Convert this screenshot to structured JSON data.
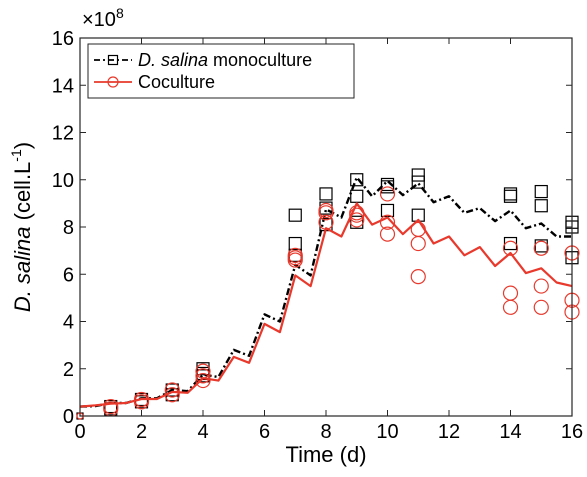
{
  "chart_data": {
    "type": "line",
    "title": "",
    "xlabel": "Time (d)",
    "ylabel_italic": "D. salina",
    "ylabel_rest": " (cell.L",
    "ylabel_exp": "-1",
    "ylabel_close": ")",
    "y_multiplier_base": "×10",
    "y_multiplier_exp": "8",
    "xlim": [
      0,
      16
    ],
    "ylim": [
      0,
      16
    ],
    "xticks": [
      "0",
      "2",
      "4",
      "6",
      "8",
      "10",
      "12",
      "14",
      "16"
    ],
    "yticks": [
      "0",
      "2",
      "4",
      "6",
      "8",
      "10",
      "12",
      "14",
      "16"
    ],
    "grid": false,
    "legend_position": "top-left",
    "series": [
      {
        "name_italic": "D. salina",
        "name_rest": " monoculture",
        "color": "#000000",
        "line_style": "dash-dot",
        "marker": "square",
        "model_x": [
          0,
          0.5,
          1,
          1.5,
          2,
          2.5,
          3,
          3.5,
          4,
          4.5,
          5,
          5.5,
          6,
          6.5,
          7,
          7.5,
          8,
          8.5,
          9,
          9.5,
          10,
          10.5,
          11,
          11.5,
          12,
          12.5,
          13,
          13.5,
          14,
          14.5,
          15,
          15.5,
          16
        ],
        "model_y": [
          0.4,
          0.42,
          0.55,
          0.55,
          0.75,
          0.75,
          1.1,
          1.05,
          1.75,
          1.65,
          2.8,
          2.55,
          4.3,
          4.0,
          6.4,
          5.95,
          8.75,
          8.4,
          10.1,
          9.3,
          9.95,
          9.35,
          9.85,
          9.05,
          9.3,
          8.6,
          8.8,
          8.25,
          8.7,
          7.95,
          8.15,
          7.6,
          7.6
        ],
        "obs_x": [
          1,
          1,
          2,
          2,
          3,
          3,
          4,
          4,
          4,
          7,
          7,
          7,
          8,
          8,
          8,
          9,
          9,
          9,
          10,
          10,
          10,
          11,
          11,
          11,
          14,
          14,
          14,
          15,
          15,
          15,
          16,
          16,
          16
        ],
        "obs_y": [
          0.4,
          0.3,
          0.7,
          0.6,
          1.1,
          0.9,
          2.0,
          1.8,
          1.7,
          8.5,
          7.3,
          6.8,
          9.4,
          8.1,
          8.8,
          10.0,
          9.3,
          8.2,
          9.8,
          9.7,
          8.7,
          10.2,
          9.9,
          8.5,
          9.4,
          9.3,
          7.3,
          9.5,
          8.9,
          7.2,
          8.2,
          8.0,
          6.7
        ],
        "obs_x0": [
          0
        ],
        "obs_y0": [
          0
        ]
      },
      {
        "name": "Coculture",
        "color": "#e8392c",
        "line_style": "solid",
        "marker": "circle",
        "model_x": [
          0,
          0.5,
          1,
          1.5,
          2,
          2.5,
          3,
          3.5,
          4,
          4.5,
          5,
          5.5,
          6,
          6.5,
          7,
          7.5,
          8,
          8.5,
          9,
          9.5,
          10,
          10.5,
          11,
          11.5,
          12,
          12.5,
          13,
          13.5,
          14,
          14.5,
          15,
          15.5,
          16
        ],
        "model_y": [
          0.4,
          0.45,
          0.52,
          0.55,
          0.72,
          0.72,
          1.02,
          0.98,
          1.6,
          1.5,
          2.5,
          2.25,
          3.9,
          3.55,
          5.95,
          5.5,
          7.95,
          7.6,
          9.0,
          8.1,
          8.4,
          7.7,
          8.3,
          7.3,
          7.6,
          6.8,
          7.15,
          6.35,
          6.9,
          6.05,
          6.25,
          5.65,
          5.5
        ],
        "obs_x": [
          1,
          1,
          2,
          2,
          3,
          3,
          4,
          4,
          4,
          7,
          7,
          7,
          8,
          8,
          8,
          9,
          9,
          9,
          10,
          10,
          10,
          11,
          11,
          11,
          14,
          14,
          14,
          15,
          15,
          15,
          16,
          16,
          16
        ],
        "obs_y": [
          0.4,
          0.3,
          0.6,
          0.7,
          1.1,
          0.9,
          1.9,
          1.7,
          1.5,
          6.8,
          6.7,
          6.6,
          8.7,
          8.6,
          8.2,
          8.6,
          8.5,
          8.3,
          9.4,
          8.2,
          7.7,
          7.9,
          7.3,
          5.9,
          7.1,
          5.2,
          4.6,
          7.1,
          5.5,
          4.6,
          6.9,
          4.9,
          4.4
        ],
        "obs_x0": [
          0
        ],
        "obs_y0": [
          0
        ]
      }
    ]
  }
}
